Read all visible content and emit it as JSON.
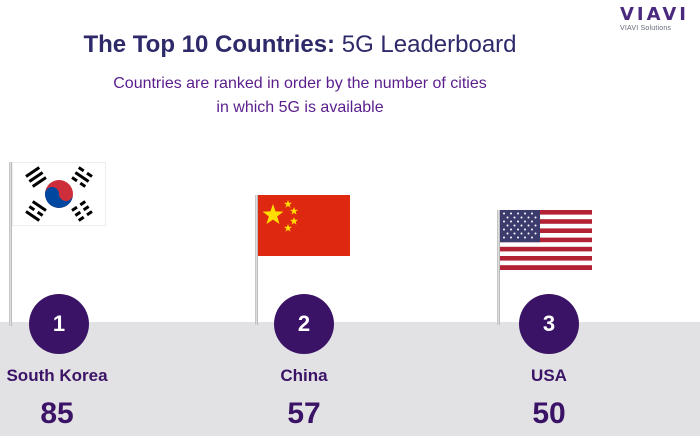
{
  "brand": {
    "name": "VIAVI",
    "tagline": "VIAVI Solutions",
    "accent_color": "#3b1366",
    "title_color": "#2e2a6a"
  },
  "header": {
    "title_bold": "The Top 10 Countries:",
    "title_light": "5G Leaderboard",
    "subtitle_line1": "Countries are ranked in order by the number of cities",
    "subtitle_line2": "in which 5G is available"
  },
  "leaderboard": [
    {
      "rank": "1",
      "country": "South Korea",
      "cities": "85",
      "flag": "south-korea-flag"
    },
    {
      "rank": "2",
      "country": "China",
      "cities": "57",
      "flag": "china-flag"
    },
    {
      "rank": "3",
      "country": "USA",
      "cities": "50",
      "flag": "usa-flag"
    }
  ]
}
